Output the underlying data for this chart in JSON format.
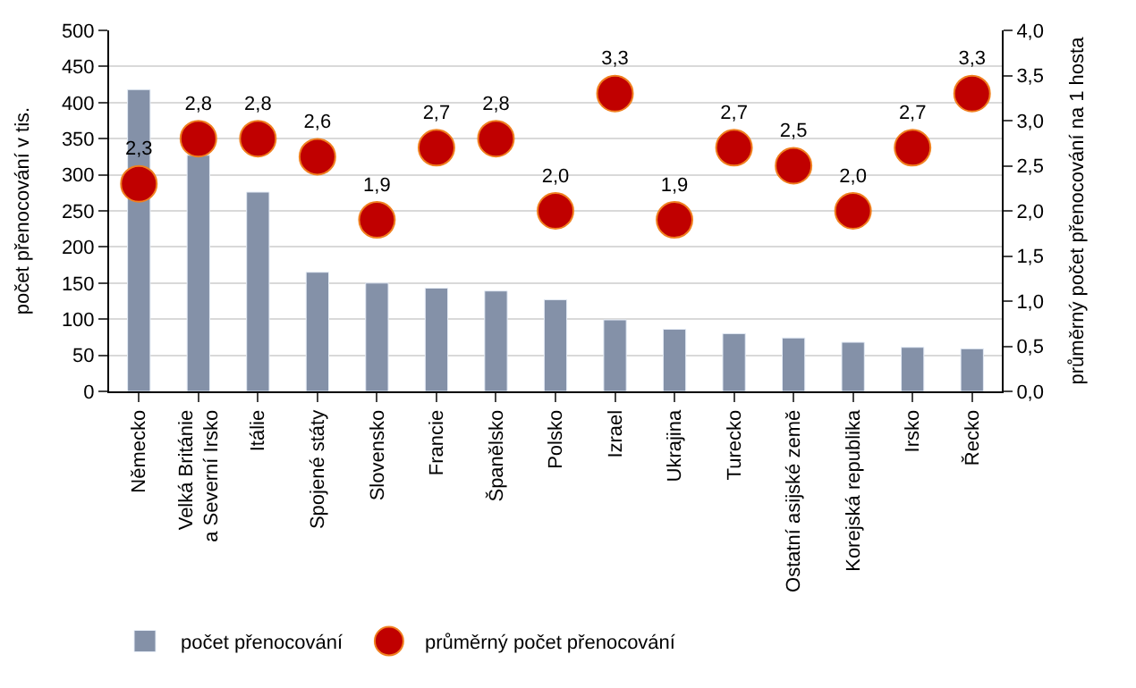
{
  "chart_data": {
    "type": "bar",
    "categories": [
      "Německo",
      "Velká Británie\na Severní Irsko",
      "Itálie",
      "Spojené státy",
      "Slovensko",
      "Francie",
      "Španělsko",
      "Polsko",
      "Izrael",
      "Ukrajina",
      "Turecko",
      "Ostatní asijské země",
      "Korejská republika",
      "Irsko",
      "Řecko"
    ],
    "series": [
      {
        "name": "počet přenocování",
        "color": "#8491a8",
        "values": [
          418,
          327,
          276,
          165,
          150,
          143,
          139,
          127,
          99,
          86,
          80,
          74,
          68,
          61,
          59
        ]
      },
      {
        "name": "průměrný počet přenocování",
        "type": "scatter",
        "axis": "y2",
        "color": "#c00000",
        "values": [
          2.3,
          2.8,
          2.8,
          2.6,
          1.9,
          2.7,
          2.8,
          2.0,
          3.3,
          1.9,
          2.7,
          2.5,
          2.0,
          2.7,
          3.3
        ],
        "value_labels": [
          "2,3",
          "2,8",
          "2,8",
          "2,6",
          "1,9",
          "2,7",
          "2,8",
          "2,0",
          "3,3",
          "1,9",
          "2,7",
          "2,5",
          "2,0",
          "2,7",
          "3,3"
        ]
      }
    ],
    "ylabel": "počet přenocování v tis.",
    "y2label": "průměrný počet přenocování na 1 hosta",
    "ylim": [
      0,
      500
    ],
    "yticks": [
      0,
      50,
      100,
      150,
      200,
      250,
      300,
      350,
      400,
      450,
      500
    ],
    "y2lim": [
      0,
      4
    ],
    "y2ticks": [
      {
        "value": 0,
        "label": "0,0"
      },
      {
        "value": 0.5,
        "label": "0,5"
      },
      {
        "value": 1,
        "label": "1,0"
      },
      {
        "value": 1.5,
        "label": "1,5"
      },
      {
        "value": 2,
        "label": "2,0"
      },
      {
        "value": 2.5,
        "label": "2,5"
      },
      {
        "value": 3,
        "label": "3,0"
      },
      {
        "value": 3.5,
        "label": "3,5"
      },
      {
        "value": 4,
        "label": "4,0"
      }
    ],
    "grid": "y",
    "legend": "bottom",
    "marker": "circle"
  }
}
